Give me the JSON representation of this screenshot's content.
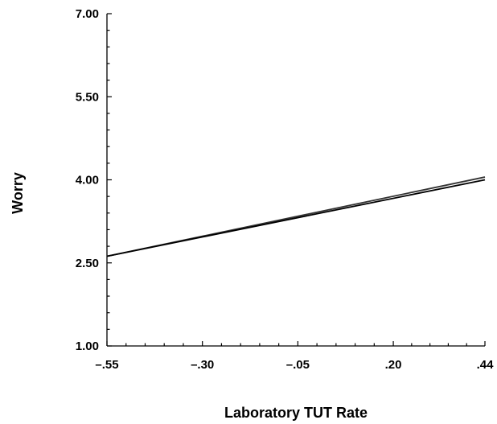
{
  "chart_data": {
    "type": "line",
    "title": "",
    "xlabel": "Laboratory TUT Rate",
    "ylabel": "Worry",
    "xlim": [
      -0.55,
      0.44
    ],
    "ylim": [
      1.0,
      7.0
    ],
    "x_ticks": [
      -0.55,
      -0.3,
      -0.05,
      0.2,
      0.44
    ],
    "x_tick_labels": [
      "–.55",
      "–.30",
      "–.05",
      ".20",
      ".44"
    ],
    "y_ticks": [
      1.0,
      2.5,
      4.0,
      5.5,
      7.0
    ],
    "y_tick_labels": [
      "1.00",
      "2.50",
      "4.00",
      "5.50",
      "7.00"
    ],
    "grid": false,
    "series": [
      {
        "x": [
          -0.55,
          0.44
        ],
        "y": [
          2.62,
          4.05
        ],
        "color": "#333333"
      },
      {
        "x": [
          -0.55,
          0.44
        ],
        "y": [
          2.62,
          4.0
        ],
        "color": "#000000"
      }
    ]
  }
}
